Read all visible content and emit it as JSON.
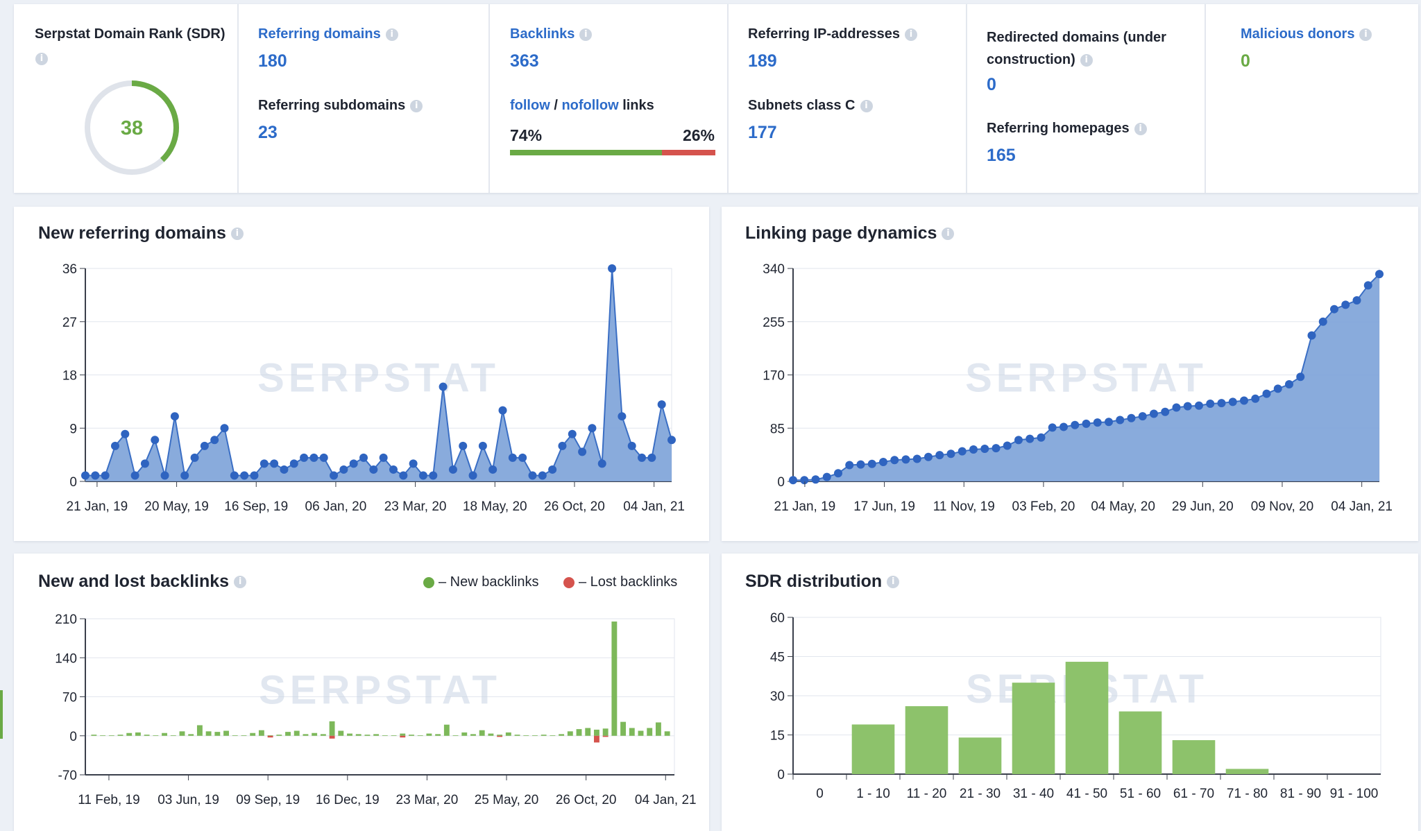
{
  "colors": {
    "link": "#2c6bc9",
    "green": "#6aaa45",
    "red": "#d5534d",
    "area": "#7fa4d9",
    "line": "#3a6ec4",
    "bar_green": "#8dc26b"
  },
  "stats": {
    "sdr": {
      "label": "Serpstat Domain Rank (SDR)",
      "value": "38",
      "percent": 38
    },
    "referring_domains": {
      "label": "Referring domains",
      "value": "180"
    },
    "referring_subdomains": {
      "label": "Referring subdomains",
      "value": "23"
    },
    "backlinks": {
      "label": "Backlinks",
      "value": "363"
    },
    "follow_nofollow": {
      "follow": "follow",
      "sep": " / ",
      "nofollow": "nofollow",
      "suffix": " links",
      "follow_pct": "74%",
      "nofollow_pct": "26%",
      "follow_fraction": 0.74
    },
    "referring_ips": {
      "label": "Referring IP-addresses",
      "value": "189"
    },
    "subnets": {
      "label": "Subnets class C",
      "value": "177"
    },
    "redirected": {
      "label": "Redirected domains (under construction)",
      "value": "0"
    },
    "homepages": {
      "label": "Referring homepages",
      "value": "165"
    },
    "malicious": {
      "label": "Malicious donors",
      "value": "0"
    }
  },
  "watermark": "SERPSTAT",
  "panels": {
    "new_referring": {
      "title": "New referring domains"
    },
    "linking": {
      "title": "Linking page dynamics"
    },
    "new_lost": {
      "title": "New and lost backlinks",
      "legend_new": "– New backlinks",
      "legend_lost": "– Lost backlinks"
    },
    "sdr_dist": {
      "title": "SDR distribution"
    }
  },
  "chart_data": [
    {
      "type": "area",
      "title": "New referring domains",
      "ylim": [
        0,
        36
      ],
      "yticks": [
        "0",
        "9",
        "18",
        "27",
        "36"
      ],
      "xtick_labels": [
        "21 Jan, 19",
        "20 May, 19",
        "16 Sep, 19",
        "06 Jan, 20",
        "23 Mar, 20",
        "18 May, 20",
        "26 Oct, 20",
        "04 Jan, 21"
      ],
      "values": [
        1,
        1,
        1,
        6,
        8,
        1,
        3,
        7,
        1,
        11,
        1,
        4,
        6,
        7,
        9,
        1,
        1,
        1,
        3,
        3,
        2,
        3,
        4,
        4,
        4,
        1,
        2,
        3,
        4,
        2,
        4,
        2,
        1,
        3,
        1,
        1,
        16,
        2,
        6,
        1,
        6,
        2,
        12,
        4,
        4,
        1,
        1,
        2,
        6,
        8,
        5,
        9,
        3,
        36,
        11,
        6,
        4,
        4,
        13,
        7
      ]
    },
    {
      "type": "area",
      "title": "Linking page dynamics",
      "ylim": [
        0,
        340
      ],
      "yticks": [
        "0",
        "85",
        "170",
        "255",
        "340"
      ],
      "xtick_labels": [
        "21 Jan, 19",
        "17 Jun, 19",
        "11 Nov, 19",
        "03 Feb, 20",
        "04 May, 20",
        "29 Jun, 20",
        "09 Nov, 20",
        "04 Jan, 21"
      ],
      "values": [
        2,
        2,
        3,
        7,
        13,
        26,
        27,
        28,
        31,
        34,
        35,
        36,
        39,
        42,
        44,
        48,
        51,
        52,
        53,
        57,
        66,
        68,
        70,
        86,
        87,
        90,
        92,
        94,
        95,
        98,
        101,
        104,
        108,
        111,
        118,
        120,
        121,
        124,
        125,
        127,
        129,
        132,
        140,
        148,
        155,
        167,
        233,
        255,
        275,
        282,
        289,
        313,
        331
      ]
    },
    {
      "type": "bar",
      "title": "New and lost backlinks",
      "ylim": [
        -70,
        210
      ],
      "yticks": [
        "-70",
        "0",
        "70",
        "140",
        "210"
      ],
      "xtick_labels": [
        "11 Feb, 19",
        "03 Jun, 19",
        "09 Sep, 19",
        "16 Dec, 19",
        "23 Mar, 20",
        "25 May, 20",
        "26 Oct, 20",
        "04 Jan, 21"
      ],
      "series": [
        {
          "name": "New backlinks",
          "values": [
            2,
            1,
            1,
            2,
            5,
            6,
            2,
            1,
            5,
            1,
            8,
            3,
            19,
            8,
            7,
            9,
            1,
            1,
            5,
            10,
            1,
            2,
            7,
            9,
            3,
            5,
            3,
            26,
            9,
            4,
            3,
            2,
            3,
            1,
            1,
            4,
            2,
            1,
            4,
            3,
            20,
            1,
            6,
            3,
            10,
            4,
            2,
            6,
            2,
            1,
            1,
            2,
            1,
            3,
            8,
            12,
            14,
            11,
            13,
            205,
            25,
            14,
            9,
            14,
            24,
            8
          ]
        },
        {
          "name": "Lost backlinks",
          "values": [
            0,
            0,
            0,
            0,
            0,
            0,
            0,
            0,
            0,
            0,
            0,
            0,
            0,
            0,
            0,
            0,
            0,
            0,
            0,
            0,
            -3,
            0,
            0,
            0,
            0,
            0,
            0,
            -5,
            0,
            0,
            0,
            0,
            0,
            0,
            0,
            -3,
            0,
            0,
            0,
            0,
            0,
            0,
            0,
            0,
            0,
            0,
            -2,
            0,
            0,
            0,
            0,
            0,
            0,
            0,
            0,
            0,
            0,
            -12,
            -2,
            0,
            0,
            0,
            0,
            0,
            0,
            0
          ]
        }
      ]
    },
    {
      "type": "bar",
      "title": "SDR distribution",
      "ylim": [
        0,
        60
      ],
      "yticks": [
        "0",
        "15",
        "30",
        "45",
        "60"
      ],
      "categories": [
        "0",
        "1 - 10",
        "11 - 20",
        "21 - 30",
        "31 - 40",
        "41 - 50",
        "51 - 60",
        "61 - 70",
        "71 - 80",
        "81 - 90",
        "91 - 100"
      ],
      "values": [
        0,
        19,
        26,
        14,
        35,
        43,
        24,
        13,
        2,
        0,
        0
      ]
    }
  ]
}
